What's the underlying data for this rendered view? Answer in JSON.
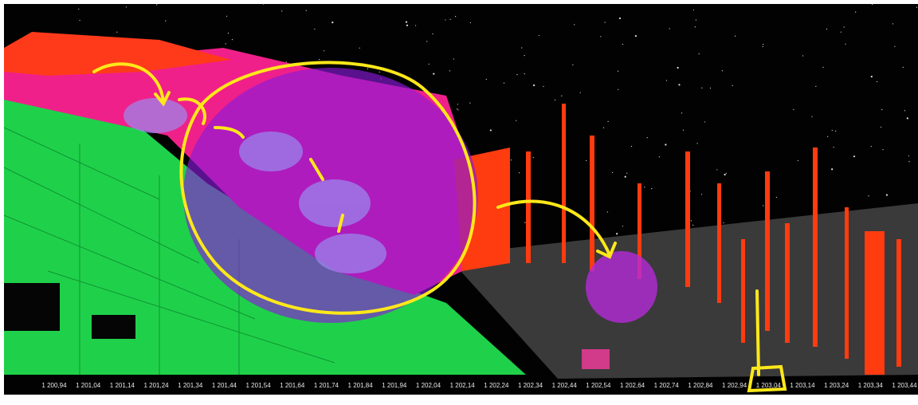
{
  "axis": {
    "labels": [
      "1 200,94",
      "1 201,04",
      "1 201,14",
      "1 201,24",
      "1 201,34",
      "1 201,44",
      "1 201,54",
      "1 201,64",
      "1 201,74",
      "1 201,84",
      "1 201,94",
      "1 202,04",
      "1 202,14",
      "1 202,24",
      "1 202,34",
      "1 202,44",
      "1 202,54",
      "1 202,64",
      "1 202,74",
      "1 202,84",
      "1 202,94",
      "1 203,04",
      "1 203,14",
      "1 203,24",
      "1 203,34",
      "1 203,44"
    ]
  }
}
